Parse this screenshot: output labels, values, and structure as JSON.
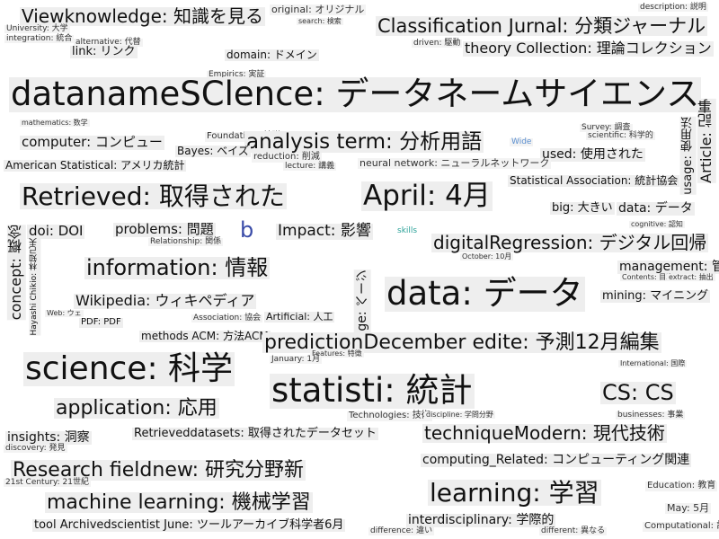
{
  "words": [
    "Viewknowledge: 知識を見る",
    "original: オリジナル",
    "search: 検索",
    "Classification Jurnal: 分類ジャーナル",
    "description: 説明",
    "University: 大学",
    "integration: 統合",
    "alternative: 代替",
    "link: リンク",
    "domain: ドメイン",
    "driven: 駆動",
    "theory Collection: 理論コレクション",
    "Empirics: 実証",
    "datanameSClence: データネームサイエンス",
    "mathematics: 数学",
    "Survey: 調査",
    "scientific: 科学的",
    "computer: コンピュー",
    "Foundation: 基礎",
    "analysis term: 分析用語",
    "Wide",
    "Bayes: ベイズ",
    "used: 使用された",
    "reduction: 削減",
    "lecture: 講義",
    "American Statistical: アメリカ統計",
    "neural network: ニューラルネットワーク",
    "Statistical Association: 統計協会",
    "Retrieved: 取得された",
    "April: 4月",
    "big: 大きい",
    "data: データ",
    "usage: 使用法",
    "Article: 記事",
    "cognitive: 認知",
    "doi: DOI",
    "problems: 問題",
    "b",
    "Impact: 影響",
    "skills",
    "digitalRegression: デジタル回帰",
    "Relationship: 関係",
    "October: 10月",
    "concept: 概念",
    "Hayashi Chikio: 林知己夫",
    "information: 情報",
    "management: 管理",
    "Contents: 目次",
    "extract: 抽出",
    "data: データ",
    "Wikipedia: ウィキペディア",
    "page: ページ",
    "mining: マイニング",
    "Web: ウェ",
    "PDF: PDF",
    "Association: 協会",
    "Artificial: 人工",
    "methods ACM: 方法ACM",
    "predictionDecember edite: 予測12月編集",
    "Features: 特徴",
    "January: 1月",
    "science: 科学",
    "International: 国際",
    "statisti: 統計",
    "CS: CS",
    "application: 応用",
    "Technologies: 技術",
    "discipline: 学問分野",
    "businesses: 事業",
    "insights: 洞察",
    "discovery: 発見",
    "Retrieveddatasets: 取得されたデータセット",
    "techniqueModern: 現代技術",
    "Research fieldnew: 研究分野新",
    "computing_Related: コンピューティング関連",
    "21st Century: 21世紀",
    "Education: 教育",
    "machine learning: 機械学習",
    "learning: 学習",
    "May: 5月",
    "tool Archivedscientist June: ツールアーカイブ科学者6月",
    "interdisciplinary: 学際的",
    "difference: 違い",
    "different: 異なる",
    "Computational: 計算的"
  ]
}
